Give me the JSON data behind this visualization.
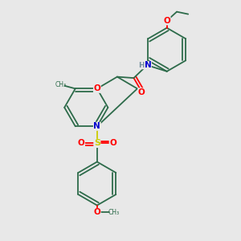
{
  "bg_color": "#e8e8e8",
  "bond_color": "#2d6b4a",
  "atom_colors": {
    "O": "#ff0000",
    "N": "#0000cd",
    "S": "#cccc00",
    "H": "#6a8a9a",
    "C": "#2d6b4a"
  }
}
